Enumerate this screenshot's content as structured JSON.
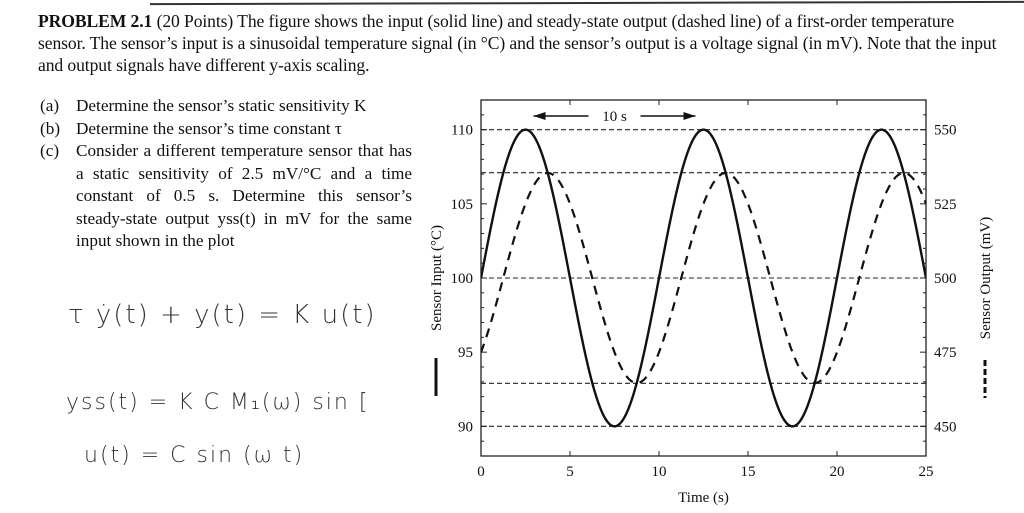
{
  "problem": {
    "heading": "PROBLEM 2.1",
    "points": "(20 Points)",
    "statement": "The figure shows the input (solid line) and steady-state output (dashed line) of a first-order temperature sensor. The sensor’s input is a sinusoidal temperature signal (in °C) and the sensor’s output is a voltage signal (in mV). Note that the input and output signals have different y-axis scaling.",
    "parts": [
      {
        "label": "(a)",
        "text": "Determine the sensor’s static sensitivity K"
      },
      {
        "label": "(b)",
        "text": "Determine the sensor’s time constant τ"
      },
      {
        "label": "(c)",
        "text": "Consider a different temperature sensor that has a static sensitivity of 2.5 mV/°C and a time constant of 0.5 s. Determine this sensor’s steady-state output yss(t) in mV for the same input shown in the plot"
      }
    ]
  },
  "handwritten_notes": [
    "τ ẏ(t) + y(t) = K u(t)",
    "yss(t) =  K C M₁(ω) sin [",
    "u(t) = C sin (ω t)"
  ],
  "chart_data": {
    "type": "line",
    "title": "",
    "xlabel": "Time (s)",
    "ylabel": "Sensor Input (°C)",
    "y2label": "Sensor Output (mV)",
    "xlim": [
      0,
      25
    ],
    "ylim": [
      88,
      112
    ],
    "y2lim": [
      440,
      560
    ],
    "x_ticks": [
      0,
      5,
      10,
      15,
      20,
      25
    ],
    "y_ticks": [
      90,
      95,
      100,
      105,
      110
    ],
    "y2_ticks": [
      450,
      475,
      500,
      525,
      550
    ],
    "annotation": {
      "text": "10 s",
      "x_start": 2.5,
      "x_end": 12.5,
      "type": "double-arrow-period"
    },
    "reference_lines_y": [
      110,
      107.1,
      100,
      92.9,
      90
    ],
    "legend": [
      {
        "name": "Sensor Input (°C)",
        "style": "solid",
        "axis": "left"
      },
      {
        "name": "Sensor Output (mV)",
        "style": "dashed",
        "axis": "right"
      }
    ],
    "series": [
      {
        "name": "Sensor Input (°C)",
        "style": "solid",
        "axis": "left",
        "model": "100 + 10*sin(2*pi*t/10)",
        "x": [
          0,
          1.25,
          2.5,
          3.75,
          5,
          6.25,
          7.5,
          8.75,
          10,
          11.25,
          12.5,
          13.75,
          15,
          16.25,
          17.5,
          18.75,
          20,
          21.25,
          22.5,
          23.75,
          25
        ],
        "values": [
          100,
          107.07,
          110,
          107.07,
          100,
          92.93,
          90,
          92.93,
          100,
          107.07,
          110,
          107.07,
          100,
          92.93,
          90,
          92.93,
          100,
          107.07,
          110,
          107.07,
          100
        ]
      },
      {
        "name": "Sensor Output (mV)",
        "style": "dashed",
        "axis": "right",
        "model": "500 + 35.4*sin(2*pi*(t-1.25)/10)",
        "x": [
          0,
          1.25,
          2.5,
          3.75,
          5,
          6.25,
          7.5,
          8.75,
          10,
          11.25,
          12.5,
          13.75,
          15,
          16.25,
          17.5,
          18.75,
          20,
          21.25,
          22.5,
          23.75,
          25
        ],
        "values": [
          475,
          500,
          525,
          535.4,
          525,
          500,
          475,
          464.6,
          475,
          500,
          525,
          535.4,
          525,
          500,
          475,
          464.6,
          475,
          500,
          525,
          535.4,
          525
        ]
      }
    ],
    "grid": false
  }
}
